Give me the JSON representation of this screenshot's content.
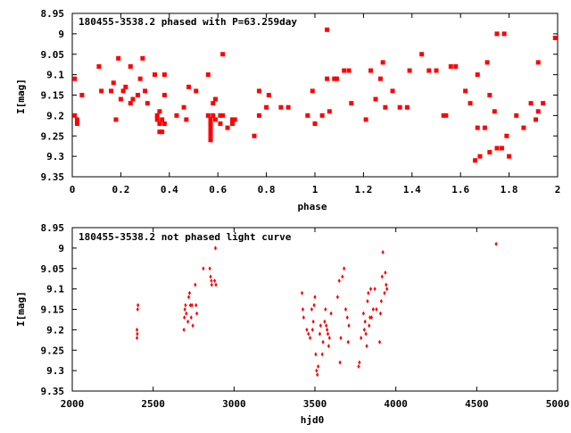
{
  "chart_data": [
    {
      "type": "scatter",
      "title": "180455-3538.2 phased with P=63.259day",
      "xlabel": "phase",
      "ylabel": "I[mag]",
      "xlim": [
        0,
        2
      ],
      "ylim": [
        9.35,
        8.95
      ],
      "y_inverted": true,
      "x_ticks": [
        "0",
        "0.2",
        "0.4",
        "0.6",
        "0.8",
        "1",
        "1.2",
        "1.4",
        "1.6",
        "1.8",
        "2"
      ],
      "y_ticks": [
        "8.95",
        "9",
        "9.05",
        "9.1",
        "9.15",
        "9.2",
        "9.25",
        "9.3",
        "9.35"
      ],
      "grid": false,
      "marker_color": "#ff0000",
      "marker": "square",
      "points": [
        [
          0.01,
          9.11
        ],
        [
          0.01,
          9.2
        ],
        [
          0.02,
          9.21
        ],
        [
          0.02,
          9.22
        ],
        [
          0.04,
          9.15
        ],
        [
          0.11,
          9.08
        ],
        [
          0.12,
          9.14
        ],
        [
          0.16,
          9.14
        ],
        [
          0.17,
          9.12
        ],
        [
          0.18,
          9.21
        ],
        [
          0.19,
          9.06
        ],
        [
          0.2,
          9.16
        ],
        [
          0.21,
          9.14
        ],
        [
          0.22,
          9.13
        ],
        [
          0.24,
          9.17
        ],
        [
          0.24,
          9.08
        ],
        [
          0.25,
          9.16
        ],
        [
          0.27,
          9.15
        ],
        [
          0.28,
          9.11
        ],
        [
          0.29,
          9.06
        ],
        [
          0.3,
          9.14
        ],
        [
          0.31,
          9.17
        ],
        [
          0.34,
          9.1
        ],
        [
          0.35,
          9.2
        ],
        [
          0.35,
          9.21
        ],
        [
          0.36,
          9.24
        ],
        [
          0.36,
          9.22
        ],
        [
          0.36,
          9.19
        ],
        [
          0.37,
          9.21
        ],
        [
          0.37,
          9.24
        ],
        [
          0.38,
          9.1
        ],
        [
          0.38,
          9.15
        ],
        [
          0.38,
          9.22
        ],
        [
          0.43,
          9.2
        ],
        [
          0.46,
          9.18
        ],
        [
          0.47,
          9.21
        ],
        [
          0.48,
          9.13
        ],
        [
          0.51,
          9.14
        ],
        [
          0.56,
          9.1
        ],
        [
          0.56,
          9.2
        ],
        [
          0.57,
          9.21
        ],
        [
          0.57,
          9.22
        ],
        [
          0.57,
          9.23
        ],
        [
          0.57,
          9.24
        ],
        [
          0.57,
          9.25
        ],
        [
          0.57,
          9.26
        ],
        [
          0.58,
          9.17
        ],
        [
          0.58,
          9.2
        ],
        [
          0.59,
          9.16
        ],
        [
          0.59,
          9.21
        ],
        [
          0.61,
          9.2
        ],
        [
          0.61,
          9.22
        ],
        [
          0.62,
          9.2
        ],
        [
          0.62,
          9.05
        ],
        [
          0.64,
          9.23
        ],
        [
          0.66,
          9.22
        ],
        [
          0.66,
          9.21
        ],
        [
          0.67,
          9.21
        ],
        [
          0.75,
          9.25
        ],
        [
          0.77,
          9.14
        ],
        [
          0.77,
          9.2
        ],
        [
          0.8,
          9.18
        ],
        [
          0.81,
          9.15
        ],
        [
          0.86,
          9.18
        ],
        [
          0.89,
          9.18
        ],
        [
          0.97,
          9.2
        ],
        [
          0.99,
          9.14
        ],
        [
          1.0,
          9.22
        ],
        [
          1.03,
          9.2
        ],
        [
          1.05,
          9.11
        ],
        [
          1.05,
          8.99
        ],
        [
          1.06,
          9.19
        ],
        [
          1.08,
          9.11
        ],
        [
          1.09,
          9.11
        ],
        [
          1.12,
          9.09
        ],
        [
          1.14,
          9.09
        ],
        [
          1.15,
          9.17
        ],
        [
          1.21,
          9.21
        ],
        [
          1.23,
          9.09
        ],
        [
          1.25,
          9.16
        ],
        [
          1.27,
          9.11
        ],
        [
          1.28,
          9.07
        ],
        [
          1.29,
          9.18
        ],
        [
          1.32,
          9.14
        ],
        [
          1.35,
          9.18
        ],
        [
          1.38,
          9.18
        ],
        [
          1.39,
          9.09
        ],
        [
          1.44,
          9.05
        ],
        [
          1.47,
          9.09
        ],
        [
          1.5,
          9.09
        ],
        [
          1.53,
          9.2
        ],
        [
          1.54,
          9.2
        ],
        [
          1.56,
          9.08
        ],
        [
          1.58,
          9.08
        ],
        [
          1.62,
          9.14
        ],
        [
          1.64,
          9.17
        ],
        [
          1.66,
          9.31
        ],
        [
          1.67,
          9.23
        ],
        [
          1.67,
          9.1
        ],
        [
          1.68,
          9.3
        ],
        [
          1.7,
          9.23
        ],
        [
          1.71,
          9.07
        ],
        [
          1.72,
          9.15
        ],
        [
          1.72,
          9.29
        ],
        [
          1.74,
          9.19
        ],
        [
          1.75,
          9.28
        ],
        [
          1.75,
          9.0
        ],
        [
          1.77,
          9.28
        ],
        [
          1.78,
          9.0
        ],
        [
          1.79,
          9.25
        ],
        [
          1.8,
          9.3
        ],
        [
          1.83,
          9.2
        ],
        [
          1.86,
          9.23
        ],
        [
          1.89,
          9.17
        ],
        [
          1.91,
          9.21
        ],
        [
          1.92,
          9.07
        ],
        [
          1.92,
          9.19
        ],
        [
          1.94,
          9.17
        ],
        [
          1.99,
          9.01
        ]
      ]
    },
    {
      "type": "scatter",
      "title": "180455-3538.2 not phased light curve",
      "xlabel": "hjd0",
      "ylabel": "I[mag]",
      "xlim": [
        2000,
        5000
      ],
      "ylim": [
        9.35,
        8.95
      ],
      "y_inverted": true,
      "x_ticks": [
        "2000",
        "2500",
        "3000",
        "3500",
        "4000",
        "4500",
        "5000"
      ],
      "y_ticks": [
        "8.95",
        "9",
        "9.05",
        "9.1",
        "9.15",
        "9.2",
        "9.25",
        "9.3",
        "9.35"
      ],
      "grid": false,
      "marker_color": "#ff0000",
      "marker": "diamond",
      "points": [
        [
          2400,
          9.2
        ],
        [
          2400,
          9.22
        ],
        [
          2402,
          9.21
        ],
        [
          2404,
          9.15
        ],
        [
          2406,
          9.14
        ],
        [
          2690,
          9.2
        ],
        [
          2693,
          9.17
        ],
        [
          2696,
          9.15
        ],
        [
          2700,
          9.14
        ],
        [
          2705,
          9.16
        ],
        [
          2715,
          9.18
        ],
        [
          2720,
          9.12
        ],
        [
          2725,
          9.11
        ],
        [
          2730,
          9.14
        ],
        [
          2735,
          9.17
        ],
        [
          2740,
          9.14
        ],
        [
          2745,
          9.19
        ],
        [
          2760,
          9.09
        ],
        [
          2765,
          9.14
        ],
        [
          2770,
          9.16
        ],
        [
          2810,
          9.05
        ],
        [
          2850,
          9.05
        ],
        [
          2855,
          9.07
        ],
        [
          2860,
          9.08
        ],
        [
          2862,
          9.09
        ],
        [
          2880,
          9.08
        ],
        [
          2885,
          9.0
        ],
        [
          2888,
          9.09
        ],
        [
          3420,
          9.11
        ],
        [
          3425,
          9.15
        ],
        [
          3430,
          9.17
        ],
        [
          3450,
          9.2
        ],
        [
          3460,
          9.21
        ],
        [
          3470,
          9.22
        ],
        [
          3480,
          9.15
        ],
        [
          3485,
          9.2
        ],
        [
          3490,
          9.18
        ],
        [
          3495,
          9.14
        ],
        [
          3500,
          9.12
        ],
        [
          3505,
          9.26
        ],
        [
          3510,
          9.3
        ],
        [
          3515,
          9.31
        ],
        [
          3520,
          9.29
        ],
        [
          3530,
          9.21
        ],
        [
          3535,
          9.19
        ],
        [
          3545,
          9.26
        ],
        [
          3550,
          9.23
        ],
        [
          3560,
          9.18
        ],
        [
          3565,
          9.15
        ],
        [
          3570,
          9.19
        ],
        [
          3575,
          9.2
        ],
        [
          3580,
          9.21
        ],
        [
          3585,
          9.24
        ],
        [
          3590,
          9.22
        ],
        [
          3600,
          9.16
        ],
        [
          3640,
          9.12
        ],
        [
          3650,
          9.08
        ],
        [
          3655,
          9.28
        ],
        [
          3660,
          9.22
        ],
        [
          3670,
          9.07
        ],
        [
          3680,
          9.05
        ],
        [
          3690,
          9.15
        ],
        [
          3700,
          9.17
        ],
        [
          3705,
          9.23
        ],
        [
          3710,
          9.19
        ],
        [
          3770,
          9.29
        ],
        [
          3775,
          9.28
        ],
        [
          3785,
          9.22
        ],
        [
          3800,
          9.16
        ],
        [
          3805,
          9.2
        ],
        [
          3810,
          9.18
        ],
        [
          3815,
          9.21
        ],
        [
          3820,
          9.24
        ],
        [
          3825,
          9.13
        ],
        [
          3830,
          9.11
        ],
        [
          3835,
          9.19
        ],
        [
          3840,
          9.17
        ],
        [
          3845,
          9.1
        ],
        [
          3850,
          9.17
        ],
        [
          3860,
          9.15
        ],
        [
          3870,
          9.1
        ],
        [
          3880,
          9.15
        ],
        [
          3900,
          9.23
        ],
        [
          3905,
          9.16
        ],
        [
          3910,
          9.13
        ],
        [
          3915,
          9.07
        ],
        [
          3920,
          9.01
        ],
        [
          3930,
          9.11
        ],
        [
          3935,
          9.06
        ],
        [
          3940,
          9.09
        ],
        [
          3945,
          9.1
        ],
        [
          4620,
          8.99
        ]
      ]
    }
  ]
}
